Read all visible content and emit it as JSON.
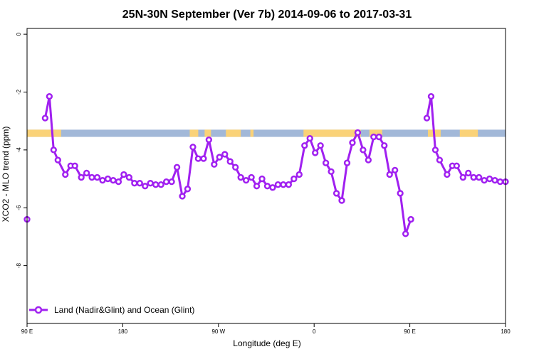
{
  "chart_data": {
    "type": "line",
    "title": "25N-30N September (Ver 7b)   2014-09-06 to 2017-03-31",
    "xlabel": "Longitude (deg E)",
    "ylabel": "XCO2 - MLO trend (ppm)",
    "xlim": [
      90,
      540
    ],
    "ylim": [
      -10,
      0.2
    ],
    "x_ticks": [
      {
        "value": 90,
        "label": "90 E"
      },
      {
        "value": 180,
        "label": "180"
      },
      {
        "value": 270,
        "label": "90 W"
      },
      {
        "value": 360,
        "label": "0"
      },
      {
        "value": 450,
        "label": "90 E"
      },
      {
        "value": 540,
        "label": "180"
      }
    ],
    "y_ticks": [
      {
        "value": 0,
        "label": "0"
      },
      {
        "value": -2,
        "label": "-2"
      },
      {
        "value": -4,
        "label": "-4"
      },
      {
        "value": -6,
        "label": "-6"
      },
      {
        "value": -8,
        "label": "-8"
      }
    ],
    "grid": false,
    "legend_position": "bottom-left",
    "colors": {
      "series": "#a020f0",
      "land": "#fad278",
      "ocean": "#a2b8d8"
    },
    "land_ocean_band": {
      "y_range": [
        -3.55,
        -3.3
      ],
      "base": "ocean",
      "land_segments": [
        [
          90,
          122
        ],
        [
          243,
          251
        ],
        [
          257,
          263
        ],
        [
          277,
          291
        ],
        [
          300,
          303
        ],
        [
          350,
          404
        ],
        [
          412,
          424
        ],
        [
          467,
          479
        ],
        [
          497,
          514
        ]
      ]
    },
    "series": [
      {
        "name": "Land (Nadir&Glint) and Ocean (Glint)",
        "segments": [
          {
            "x": [
              90
            ],
            "y": [
              -6.4
            ]
          },
          {
            "x": [
              107,
              111,
              115,
              119,
              126,
              131,
              135,
              141,
              146,
              151,
              156,
              161,
              166,
              171,
              176,
              181,
              186,
              191,
              196,
              201,
              206,
              211,
              216,
              221,
              226,
              231,
              236,
              241,
              246,
              251,
              256,
              261,
              266,
              271,
              276,
              281,
              286,
              291,
              296,
              301,
              306,
              311,
              316,
              321,
              326,
              331,
              336,
              341,
              346,
              351,
              356,
              361,
              366,
              371,
              376,
              381,
              386,
              391,
              396,
              401,
              406,
              411,
              416,
              421,
              426,
              431,
              436,
              441,
              446,
              451
            ],
            "y": [
              -2.9,
              -2.15,
              -4.0,
              -4.35,
              -4.85,
              -4.55,
              -4.55,
              -4.95,
              -4.8,
              -4.95,
              -4.95,
              -5.05,
              -5.0,
              -5.05,
              -5.1,
              -4.85,
              -4.95,
              -5.15,
              -5.15,
              -5.25,
              -5.15,
              -5.2,
              -5.2,
              -5.1,
              -5.1,
              -4.6,
              -5.6,
              -5.35,
              -3.9,
              -4.3,
              -4.3,
              -3.65,
              -4.5,
              -4.25,
              -4.15,
              -4.4,
              -4.6,
              -4.95,
              -5.05,
              -4.95,
              -5.25,
              -5.0,
              -5.25,
              -5.3,
              -5.2,
              -5.2,
              -5.2,
              -5.0,
              -4.85,
              -3.85,
              -3.6,
              -4.1,
              -3.85,
              -4.45,
              -4.75,
              -5.5,
              -5.75,
              -4.45,
              -3.75,
              -3.4,
              -4.0,
              -4.35,
              -3.55,
              -3.55,
              -3.85,
              -4.85,
              -4.7,
              -5.5,
              -6.9,
              -6.4
            ]
          },
          {
            "x": [
              466,
              470,
              474,
              478,
              485,
              490,
              494,
              500,
              505,
              510,
              515,
              520,
              525,
              530,
              535,
              540
            ],
            "y": [
              -2.9,
              -2.15,
              -4.0,
              -4.35,
              -4.85,
              -4.55,
              -4.55,
              -4.95,
              -4.8,
              -4.95,
              -4.95,
              -5.05,
              -5.0,
              -5.05,
              -5.1,
              -5.1
            ]
          }
        ]
      }
    ]
  }
}
